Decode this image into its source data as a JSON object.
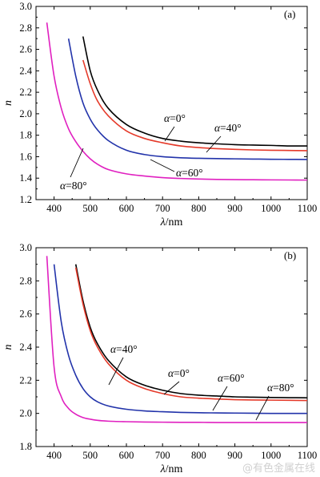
{
  "chart_data": [
    {
      "type": "line",
      "panel_label": "(a)",
      "xlabel": "λ/nm",
      "ylabel": "n",
      "xlim": [
        350,
        1100
      ],
      "ylim": [
        1.2,
        3.0
      ],
      "xticks": [
        400,
        500,
        600,
        700,
        800,
        900,
        1000,
        1100
      ],
      "yticks": [
        1.2,
        1.4,
        1.6,
        1.8,
        2.0,
        2.2,
        2.4,
        2.6,
        2.8,
        3.0
      ],
      "x": [
        380,
        400,
        420,
        440,
        460,
        480,
        500,
        520,
        550,
        600,
        650,
        700,
        750,
        800,
        850,
        900,
        950,
        1000,
        1050,
        1100
      ],
      "series": [
        {
          "name": "α=0°",
          "color": "#000000",
          "values": [
            null,
            null,
            null,
            null,
            null,
            2.72,
            2.4,
            2.22,
            2.05,
            1.9,
            1.82,
            1.77,
            1.745,
            1.73,
            1.72,
            1.712,
            1.708,
            1.705,
            1.7,
            1.7
          ]
        },
        {
          "name": "α=40°",
          "color": "#e53a2a",
          "values": [
            null,
            null,
            null,
            null,
            null,
            2.5,
            2.28,
            2.12,
            1.98,
            1.84,
            1.77,
            1.73,
            1.7,
            1.685,
            1.675,
            1.668,
            1.663,
            1.66,
            1.658,
            1.656
          ]
        },
        {
          "name": "α=60°",
          "color": "#2233aa",
          "values": [
            null,
            null,
            null,
            2.7,
            2.35,
            2.1,
            1.95,
            1.85,
            1.75,
            1.66,
            1.62,
            1.6,
            1.59,
            1.585,
            1.582,
            1.58,
            1.578,
            1.576,
            1.575,
            1.574
          ]
        },
        {
          "name": "α=80°",
          "color": "#e020c0",
          "values": [
            2.85,
            2.35,
            2.05,
            1.86,
            1.74,
            1.65,
            1.58,
            1.53,
            1.48,
            1.44,
            1.42,
            1.405,
            1.397,
            1.392,
            1.388,
            1.386,
            1.385,
            1.384,
            1.383,
            1.382
          ]
        }
      ],
      "annotations": [
        "α=0°",
        "α=40°",
        "α=60°",
        "α=80°"
      ]
    },
    {
      "type": "line",
      "panel_label": "(b)",
      "xlabel": "λ/nm",
      "ylabel": "n",
      "xlim": [
        350,
        1100
      ],
      "ylim": [
        1.8,
        3.0
      ],
      "xticks": [
        400,
        500,
        600,
        700,
        800,
        900,
        1000,
        1100
      ],
      "yticks": [
        1.8,
        2.0,
        2.2,
        2.4,
        2.6,
        2.8,
        3.0
      ],
      "x": [
        380,
        400,
        420,
        440,
        460,
        480,
        500,
        520,
        550,
        600,
        650,
        700,
        750,
        800,
        850,
        900,
        950,
        1000,
        1050,
        1100
      ],
      "series": [
        {
          "name": "α=0°",
          "color": "#000000",
          "values": [
            null,
            null,
            null,
            null,
            2.9,
            2.68,
            2.52,
            2.42,
            2.32,
            2.22,
            2.17,
            2.14,
            2.12,
            2.11,
            2.105,
            2.1,
            2.098,
            2.096,
            2.095,
            2.094
          ]
        },
        {
          "name": "α=40°",
          "color": "#e53a2a",
          "values": [
            null,
            null,
            null,
            null,
            2.88,
            2.66,
            2.5,
            2.4,
            2.3,
            2.2,
            2.15,
            2.12,
            2.1,
            2.092,
            2.087,
            2.083,
            2.081,
            2.08,
            2.079,
            2.078
          ]
        },
        {
          "name": "α=60°",
          "color": "#2233aa",
          "values": [
            null,
            2.9,
            2.55,
            2.35,
            2.23,
            2.15,
            2.1,
            2.07,
            2.045,
            2.025,
            2.015,
            2.01,
            2.006,
            2.004,
            2.003,
            2.002,
            2.001,
            2.0,
            2.0,
            2.0
          ]
        },
        {
          "name": "α=80°",
          "color": "#e020c0",
          "values": [
            2.95,
            2.28,
            2.1,
            2.03,
            1.995,
            1.975,
            1.965,
            1.958,
            1.953,
            1.95,
            1.948,
            1.947,
            1.946,
            1.946,
            1.945,
            1.945,
            1.945,
            1.945,
            1.945,
            1.945
          ]
        }
      ],
      "annotations": [
        "α=40°",
        "α=0°",
        "α=60°",
        "α=80°"
      ]
    }
  ],
  "watermark": "@有色金属在线"
}
